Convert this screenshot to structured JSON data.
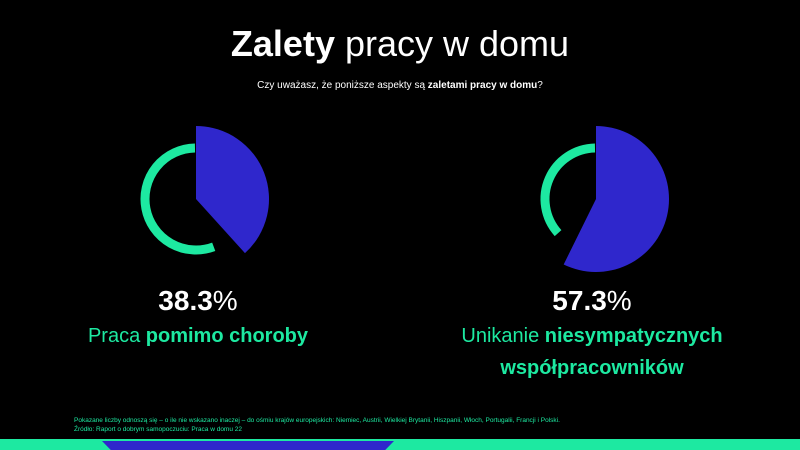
{
  "title": {
    "bold": "Zalety",
    "light": "pracy w domu"
  },
  "subtitle": {
    "text": "Czy uważasz, że poniższe aspekty są ",
    "bold": "zaletami pracy w domu",
    "end": "?"
  },
  "colors": {
    "background": "#000000",
    "ring": "#1de9a1",
    "slice": "#2f27cc",
    "text": "#ffffff"
  },
  "chart_data": [
    {
      "type": "pie",
      "values": [
        38.3
      ],
      "unit": "%",
      "label_prefix": "Praca ",
      "label_bold": "pomimo choroby"
    },
    {
      "type": "pie",
      "values": [
        57.3
      ],
      "unit": "%",
      "label_prefix": "Unikanie ",
      "label_bold": "niesympatycznych współpracowników"
    }
  ],
  "footnote": {
    "line1": "Pokazane liczby odnoszą się – o ile nie wskazano inaczej – do ośmiu krajów europejskich: Niemiec, Austrii, Wielkiej Brytanii, Hiszpanii, Włoch, Portugalii, Francji i Polski.",
    "line2": "Źródło: Raport o dobrym samopoczuciu: Praca w domu 22"
  }
}
